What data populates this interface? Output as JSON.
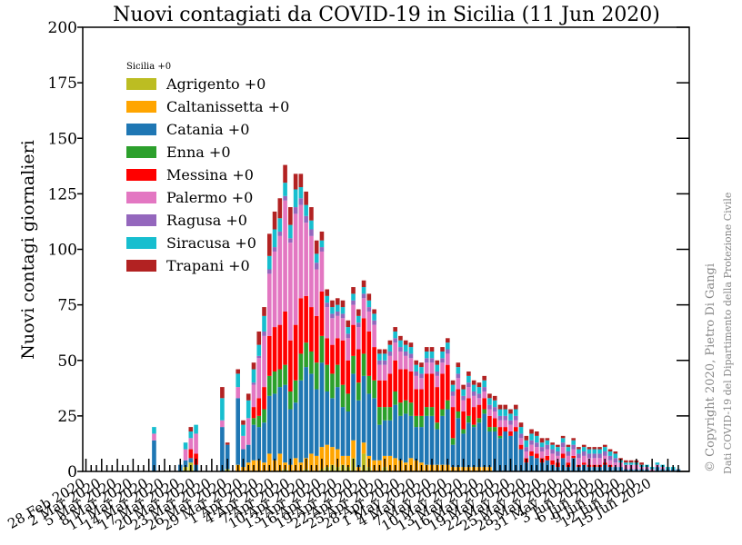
{
  "chart_data": {
    "type": "bar",
    "stacked": true,
    "title": "Nuovi contagiati da COVID-19 in Sicilia (11 Jun 2020)",
    "xlabel": "",
    "ylabel": "Nuovi contagi giornalieri",
    "ylim": [
      0,
      200
    ],
    "yticks": [
      0,
      25,
      50,
      75,
      100,
      125,
      150,
      175,
      200
    ],
    "xticks": [
      "28 Feb 2020",
      "2 Mar 2020",
      "5 Mar 2020",
      "8 Mar 2020",
      "11 Mar 2020",
      "14 Mar 2020",
      "17 Mar 2020",
      "20 Mar 2020",
      "23 Mar 2020",
      "26 Mar 2020",
      "29 Mar 2020",
      "1 Apr 2020",
      "4 Apr 2020",
      "7 Apr 2020",
      "10 Apr 2020",
      "13 Apr 2020",
      "16 Apr 2020",
      "19 Apr 2020",
      "22 Apr 2020",
      "25 Apr 2020",
      "28 Apr 2020",
      "1 May 2020",
      "4 May 2020",
      "7 May 2020",
      "10 May 2020",
      "13 May 2020",
      "16 May 2020",
      "19 May 2020",
      "22 May 2020",
      "25 May 2020",
      "28 May 2020",
      "31 May 2020",
      "3 Jun 2020",
      "6 Jun 2020",
      "9 Jun 2020",
      "12 Jun 2020",
      "15 Jun 2020"
    ],
    "legend_title": "Sicilia  +0",
    "legend_position": "upper-left",
    "series": [
      {
        "name": "Agrigento  +0",
        "color": "#bcbd22",
        "values": [
          0,
          0,
          0,
          0,
          0,
          0,
          0,
          0,
          0,
          0,
          0,
          0,
          0,
          0,
          0,
          0,
          0,
          0,
          0,
          2,
          4,
          0,
          0,
          0,
          0,
          0,
          0,
          1,
          0,
          0,
          0,
          0,
          0,
          0,
          0,
          0,
          0,
          0,
          1,
          0,
          0,
          0,
          1,
          0,
          0,
          1,
          2,
          3,
          2,
          3,
          2,
          6,
          0,
          8,
          2,
          0,
          0,
          2,
          0,
          0,
          0,
          0,
          0,
          0,
          0,
          0,
          0,
          0,
          0,
          0,
          0,
          0,
          0,
          0,
          0,
          0,
          0,
          0,
          0,
          0,
          0,
          0,
          0,
          0,
          0,
          0,
          0,
          0,
          0,
          0,
          0,
          0,
          0,
          0,
          0,
          0,
          0,
          0,
          0,
          0,
          0,
          0,
          0,
          0,
          0,
          0,
          0,
          0,
          0,
          0,
          0,
          0,
          0,
          0
        ]
      },
      {
        "name": "Caltanissetta  +0",
        "color": "#ffa500",
        "values": [
          0,
          0,
          0,
          0,
          0,
          0,
          0,
          0,
          0,
          0,
          0,
          0,
          0,
          0,
          0,
          0,
          0,
          0,
          0,
          0,
          0,
          0,
          0,
          0,
          0,
          0,
          0,
          0,
          0,
          3,
          2,
          4,
          5,
          5,
          4,
          8,
          5,
          8,
          3,
          3,
          6,
          4,
          5,
          8,
          7,
          10,
          10,
          8,
          8,
          4,
          5,
          8,
          2,
          5,
          5,
          5,
          5,
          5,
          7,
          6,
          5,
          4,
          6,
          5,
          4,
          3,
          3,
          3,
          3,
          3,
          2,
          2,
          2,
          2,
          2,
          2,
          2,
          2,
          0,
          0,
          0,
          0,
          0,
          0,
          0,
          0,
          0,
          0,
          0,
          0,
          0,
          0,
          0,
          0,
          0,
          0,
          0,
          0,
          0,
          0,
          0,
          0,
          0,
          0,
          0,
          0,
          0,
          0,
          0,
          0,
          0,
          0,
          0,
          0
        ]
      },
      {
        "name": "Catania  +0",
        "color": "#1f77b4",
        "values": [
          0,
          0,
          0,
          0,
          0,
          0,
          0,
          0,
          0,
          0,
          0,
          0,
          0,
          14,
          0,
          0,
          0,
          0,
          3,
          3,
          2,
          3,
          0,
          0,
          0,
          0,
          20,
          11,
          0,
          30,
          8,
          8,
          16,
          15,
          18,
          26,
          30,
          30,
          35,
          25,
          25,
          37,
          41,
          36,
          30,
          38,
          24,
          22,
          28,
          22,
          20,
          30,
          30,
          30,
          28,
          28,
          16,
          16,
          16,
          24,
          20,
          22,
          19,
          15,
          16,
          22,
          22,
          16,
          22,
          25,
          10,
          22,
          15,
          20,
          18,
          20,
          24,
          16,
          18,
          15,
          18,
          16,
          18,
          10,
          4,
          7,
          6,
          4,
          5,
          3,
          2,
          6,
          2,
          6,
          2,
          3,
          2,
          2,
          2,
          3,
          2,
          2,
          2,
          1,
          1,
          1,
          1,
          1,
          0,
          2,
          1,
          1,
          1,
          1
        ]
      },
      {
        "name": "Enna  +0",
        "color": "#2ca02c",
        "values": [
          0,
          0,
          0,
          0,
          0,
          0,
          0,
          0,
          0,
          0,
          0,
          0,
          0,
          0,
          0,
          0,
          0,
          0,
          0,
          0,
          0,
          0,
          0,
          0,
          0,
          0,
          0,
          0,
          0,
          0,
          0,
          0,
          3,
          5,
          6,
          9,
          10,
          8,
          9,
          8,
          10,
          12,
          11,
          10,
          12,
          12,
          12,
          11,
          10,
          10,
          8,
          8,
          8,
          10,
          8,
          8,
          8,
          6,
          6,
          6,
          6,
          6,
          6,
          5,
          5,
          4,
          4,
          3,
          3,
          4,
          3,
          3,
          2,
          3,
          1,
          2,
          2,
          2,
          2,
          1,
          0,
          0,
          0,
          0,
          0,
          0,
          0,
          0,
          0,
          0,
          0,
          0,
          0,
          0,
          0,
          0,
          0,
          0,
          0,
          0,
          0,
          0,
          0,
          0,
          0,
          0,
          0,
          0,
          0,
          0,
          0,
          0,
          0,
          0
        ]
      },
      {
        "name": "Messina  +0",
        "color": "#ff0000",
        "values": [
          0,
          0,
          0,
          0,
          0,
          0,
          0,
          0,
          0,
          0,
          0,
          0,
          0,
          0,
          0,
          0,
          0,
          0,
          0,
          0,
          4,
          5,
          0,
          0,
          0,
          0,
          0,
          0,
          0,
          0,
          0,
          0,
          5,
          8,
          10,
          18,
          20,
          20,
          24,
          23,
          25,
          25,
          21,
          20,
          21,
          20,
          12,
          13,
          12,
          20,
          15,
          14,
          15,
          16,
          20,
          15,
          12,
          12,
          15,
          14,
          15,
          14,
          14,
          12,
          12,
          15,
          15,
          16,
          16,
          16,
          14,
          10,
          8,
          8,
          8,
          6,
          5,
          5,
          4,
          4,
          2,
          2,
          2,
          2,
          2,
          2,
          2,
          2,
          2,
          2,
          2,
          2,
          2,
          1,
          1,
          1,
          1,
          1,
          1,
          1,
          1,
          0,
          0,
          0,
          0,
          0,
          0,
          0,
          0,
          0,
          0,
          0,
          0,
          0
        ]
      },
      {
        "name": "Palermo  +0",
        "color": "#e377c2",
        "values": [
          0,
          0,
          0,
          0,
          0,
          0,
          0,
          0,
          0,
          0,
          0,
          0,
          0,
          3,
          0,
          0,
          0,
          0,
          0,
          5,
          5,
          9,
          0,
          0,
          0,
          0,
          3,
          0,
          0,
          5,
          6,
          12,
          10,
          18,
          23,
          28,
          34,
          40,
          50,
          44,
          50,
          42,
          33,
          32,
          21,
          18,
          14,
          12,
          10,
          10,
          10,
          9,
          10,
          9,
          9,
          10,
          7,
          7,
          8,
          8,
          8,
          6,
          6,
          6,
          5,
          5,
          5,
          5,
          5,
          5,
          5,
          5,
          5,
          5,
          5,
          3,
          3,
          3,
          3,
          3,
          3,
          3,
          3,
          3,
          3,
          3,
          3,
          3,
          3,
          3,
          3,
          3,
          3,
          3,
          3,
          3,
          3,
          3,
          3,
          3,
          2,
          2,
          2,
          2,
          2,
          2,
          1,
          1,
          1,
          1,
          1,
          0,
          0,
          0
        ]
      },
      {
        "name": "Ragusa  +0",
        "color": "#9467bd",
        "values": [
          0,
          0,
          0,
          0,
          0,
          0,
          0,
          0,
          0,
          0,
          0,
          0,
          0,
          0,
          0,
          0,
          0,
          0,
          0,
          0,
          0,
          0,
          0,
          0,
          0,
          0,
          0,
          0,
          0,
          0,
          0,
          0,
          1,
          1,
          2,
          2,
          2,
          2,
          2,
          2,
          3,
          3,
          3,
          3,
          3,
          2,
          2,
          2,
          2,
          2,
          2,
          2,
          2,
          2,
          2,
          2,
          2,
          2,
          2,
          2,
          2,
          2,
          2,
          2,
          2,
          2,
          2,
          2,
          2,
          2,
          2,
          2,
          2,
          2,
          2,
          2,
          2,
          2,
          2,
          2,
          2,
          2,
          2,
          2,
          2,
          2,
          2,
          2,
          2,
          2,
          2,
          2,
          2,
          2,
          2,
          2,
          2,
          2,
          2,
          2,
          2,
          2,
          0,
          0,
          0,
          0,
          0,
          0,
          0,
          0,
          0,
          0,
          0,
          0
        ]
      },
      {
        "name": "Siracusa  +0",
        "color": "#17becf",
        "values": [
          0,
          0,
          0,
          0,
          0,
          0,
          0,
          0,
          0,
          0,
          0,
          0,
          0,
          3,
          0,
          0,
          0,
          0,
          0,
          3,
          3,
          4,
          0,
          0,
          0,
          0,
          10,
          0,
          0,
          6,
          5,
          8,
          6,
          5,
          7,
          6,
          8,
          6,
          6,
          6,
          8,
          5,
          5,
          4,
          4,
          3,
          3,
          3,
          3,
          3,
          3,
          3,
          3,
          3,
          3,
          3,
          3,
          3,
          3,
          3,
          3,
          3,
          3,
          3,
          3,
          3,
          3,
          3,
          3,
          3,
          3,
          3,
          3,
          3,
          3,
          3,
          3,
          3,
          3,
          3,
          3,
          3,
          3,
          3,
          3,
          3,
          3,
          2,
          2,
          2,
          2,
          2,
          2,
          2,
          2,
          2,
          2,
          2,
          2,
          2,
          2,
          2,
          1,
          1,
          1,
          1,
          1,
          1,
          1,
          1,
          1,
          1,
          1,
          0
        ]
      },
      {
        "name": "Trapani  +0",
        "color": "#b22222",
        "values": [
          0,
          0,
          0,
          0,
          0,
          0,
          0,
          0,
          0,
          0,
          0,
          0,
          0,
          0,
          0,
          0,
          0,
          0,
          0,
          0,
          2,
          0,
          0,
          0,
          0,
          0,
          5,
          1,
          0,
          2,
          2,
          3,
          3,
          6,
          4,
          10,
          8,
          9,
          8,
          8,
          7,
          6,
          6,
          6,
          6,
          4,
          3,
          3,
          3,
          3,
          3,
          3,
          3,
          3,
          3,
          2,
          2,
          2,
          2,
          2,
          2,
          2,
          2,
          2,
          2,
          2,
          2,
          2,
          2,
          2,
          2,
          2,
          2,
          2,
          2,
          2,
          2,
          2,
          2,
          2,
          2,
          2,
          2,
          2,
          2,
          2,
          2,
          2,
          1,
          1,
          1,
          1,
          1,
          1,
          1,
          1,
          1,
          1,
          1,
          1,
          1,
          1,
          1,
          1,
          1,
          1,
          1,
          0,
          0,
          0,
          0,
          0,
          0,
          0
        ]
      }
    ]
  },
  "footer": {
    "copyright": "© Copyright 2020, Pietro Di Gangi",
    "source": "Dati COVID-19 del Dipartimento della Protezione Civile"
  }
}
